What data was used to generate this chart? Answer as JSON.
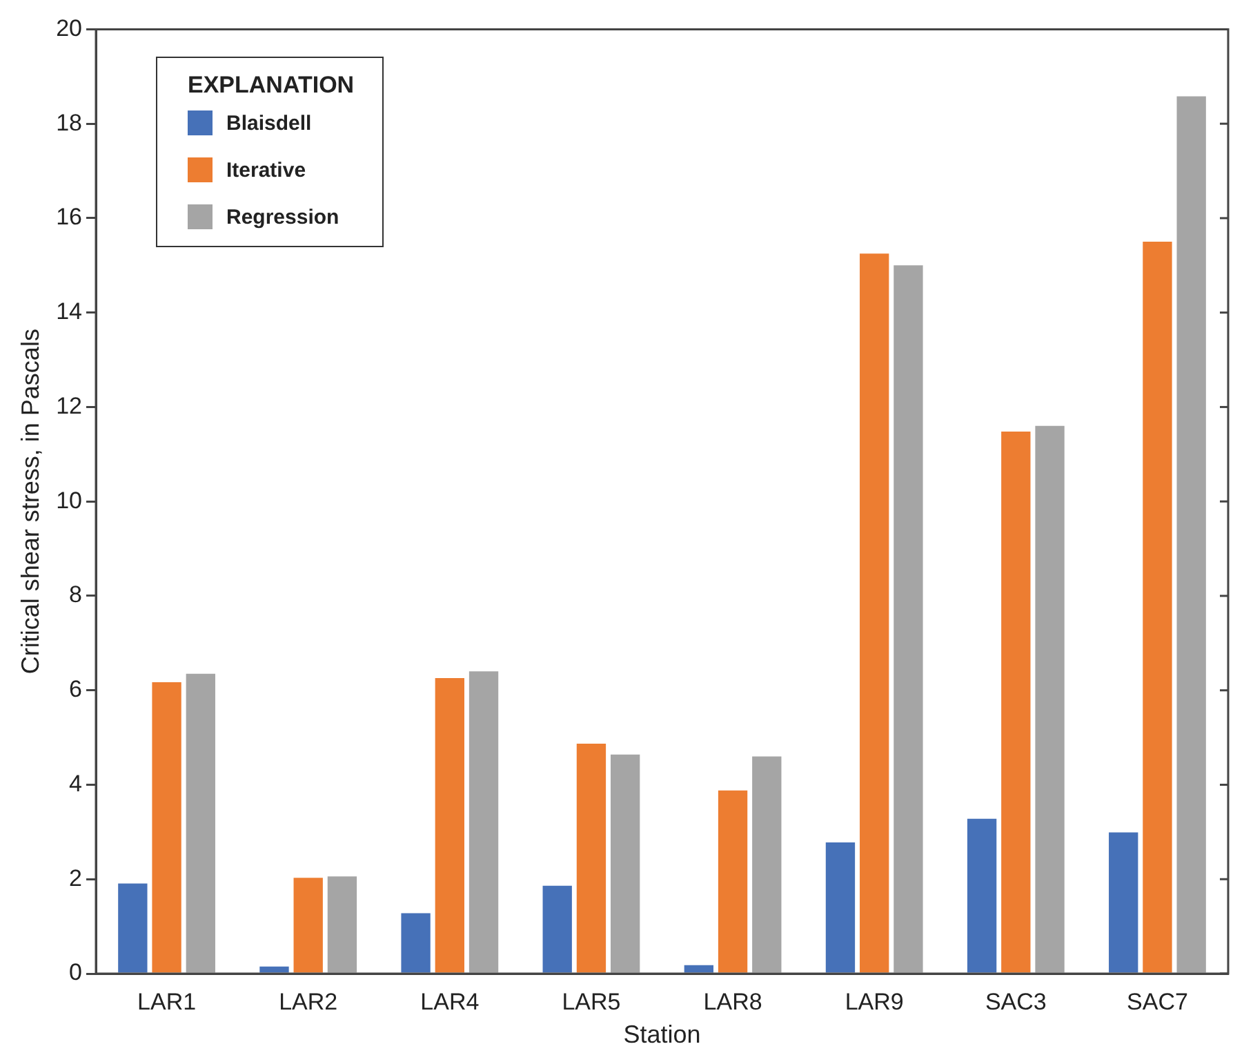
{
  "chart_data": {
    "type": "bar",
    "xlabel": "Station",
    "ylabel": "Critical shear stress, in Pascals",
    "legend_title": "EXPLANATION",
    "categories": [
      "LAR1",
      "LAR2",
      "LAR4",
      "LAR5",
      "LAR8",
      "LAR9",
      "SAC3",
      "SAC7"
    ],
    "series": [
      {
        "name": "Blaisdell",
        "color": "#4671b8",
        "values": [
          1.91,
          0.15,
          1.28,
          1.86,
          0.18,
          2.78,
          3.28,
          2.99
        ]
      },
      {
        "name": "Iterative",
        "color": "#ed7d31",
        "values": [
          6.17,
          2.03,
          6.26,
          4.87,
          3.88,
          15.25,
          11.48,
          15.5
        ]
      },
      {
        "name": "Regression",
        "color": "#a5a5a5",
        "values": [
          6.35,
          2.06,
          6.4,
          4.64,
          4.6,
          15.0,
          11.6,
          18.58
        ]
      }
    ],
    "ylim": [
      0,
      20
    ],
    "yticks": [
      0,
      2,
      4,
      6,
      8,
      10,
      12,
      14,
      16,
      18,
      20
    ],
    "grid": false,
    "legend": "top left"
  }
}
